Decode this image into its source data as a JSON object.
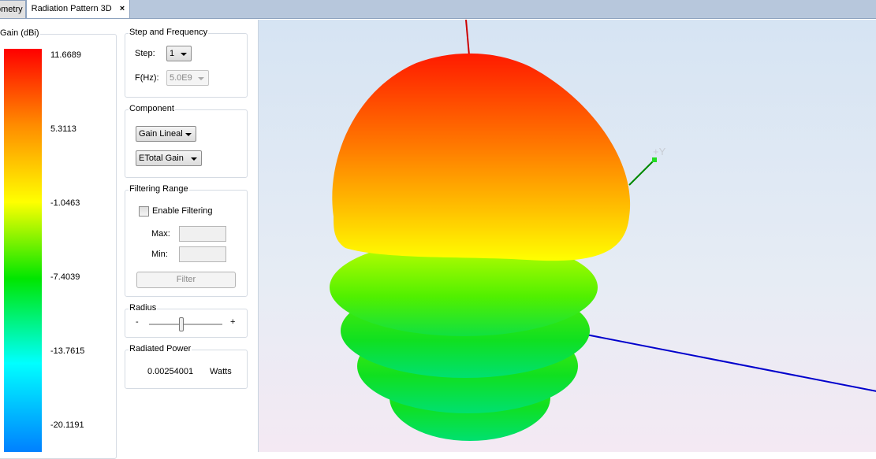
{
  "tabs": [
    {
      "label": "ometry"
    },
    {
      "label": "Radiation Pattern 3D",
      "close": "×"
    }
  ],
  "colorbar": {
    "title": "Gain (dBi)",
    "ticks": [
      "11.6689",
      "5.3113",
      "-1.0463",
      "-7.4039",
      "-13.7615",
      "-20.1191"
    ],
    "colors": [
      "#ff0000",
      "#ff8c00",
      "#ffff00",
      "#00e600",
      "#00ffff",
      "#0080ff"
    ]
  },
  "step_freq": {
    "title": "Step and Frequency",
    "step_label": "Step:",
    "step_value": "1",
    "freq_label": "F(Hz):",
    "freq_value": "5.0E9"
  },
  "component": {
    "title": "Component",
    "combo1": "Gain Lineal",
    "combo2": "ETotal Gain"
  },
  "filtering": {
    "title": "Filtering Range",
    "enable_label": "Enable Filtering",
    "enabled": false,
    "max_label": "Max:",
    "min_label": "Min:",
    "max_value": "",
    "min_value": "",
    "filter_button": "Filter"
  },
  "radius": {
    "title": "Radius",
    "minus": "-",
    "plus": "+",
    "value_percent": 45
  },
  "power": {
    "title": "Radiated Power",
    "value": "0.00254001",
    "unit": "Watts"
  },
  "view": {
    "y_axis_label": "+Y",
    "axis_colors": {
      "x": "#cc0000",
      "y": "#00aa00",
      "z": "#0000cc"
    }
  }
}
